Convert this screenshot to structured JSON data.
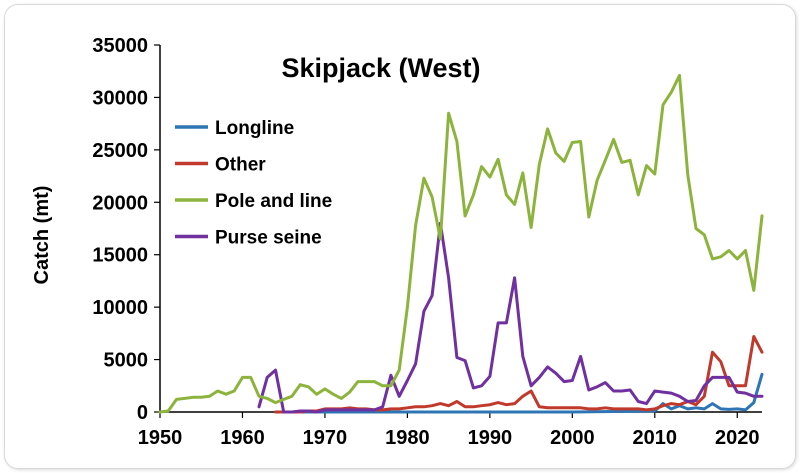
{
  "chart_data": {
    "type": "line",
    "title": "Skipjack (West)",
    "xlabel": "",
    "ylabel": "Catch (mt)",
    "xlim": [
      1950,
      2023
    ],
    "ylim": [
      0,
      35000
    ],
    "x_ticks": [
      1950,
      1960,
      1970,
      1980,
      1990,
      2000,
      2010,
      2020
    ],
    "y_ticks": [
      0,
      5000,
      10000,
      15000,
      20000,
      25000,
      30000,
      35000
    ],
    "grid": false,
    "legend_position": "left",
    "series": [
      {
        "name": "Longline",
        "color": "#2e75b6",
        "x": [
          1964,
          1970,
          1980,
          1990,
          2000,
          2005,
          2010,
          2011,
          2012,
          2013,
          2014,
          2015,
          2016,
          2017,
          2018,
          2019,
          2020,
          2021,
          2022,
          2023
        ],
        "values": [
          0,
          0,
          0,
          0,
          0,
          50,
          100,
          800,
          300,
          600,
          300,
          400,
          300,
          800,
          300,
          250,
          300,
          200,
          900,
          3600
        ]
      },
      {
        "name": "Other",
        "color": "#c0392b",
        "x": [
          1964,
          1965,
          1966,
          1967,
          1968,
          1969,
          1970,
          1971,
          1972,
          1973,
          1974,
          1975,
          1976,
          1977,
          1978,
          1979,
          1980,
          1981,
          1982,
          1983,
          1984,
          1985,
          1986,
          1987,
          1988,
          1989,
          1990,
          1991,
          1992,
          1993,
          1994,
          1995,
          1996,
          1997,
          1998,
          1999,
          2000,
          2001,
          2002,
          2003,
          2004,
          2005,
          2006,
          2007,
          2008,
          2009,
          2010,
          2011,
          2012,
          2013,
          2014,
          2015,
          2016,
          2017,
          2018,
          2019,
          2020,
          2021,
          2022,
          2023
        ],
        "values": [
          0,
          0,
          0,
          0,
          100,
          100,
          300,
          300,
          300,
          400,
          300,
          300,
          200,
          200,
          300,
          300,
          400,
          500,
          500,
          600,
          800,
          600,
          1000,
          500,
          500,
          600,
          700,
          900,
          700,
          800,
          1500,
          2000,
          500,
          400,
          400,
          400,
          400,
          400,
          300,
          300,
          400,
          300,
          300,
          300,
          300,
          200,
          300,
          600,
          800,
          700,
          1000,
          700,
          1500,
          5700,
          4800,
          2500,
          2500,
          2500,
          7200,
          5700
        ]
      },
      {
        "name": "Pole and line",
        "color": "#8cb43c",
        "x": [
          1950,
          1951,
          1952,
          1953,
          1954,
          1955,
          1956,
          1957,
          1958,
          1959,
          1960,
          1961,
          1962,
          1963,
          1964,
          1965,
          1966,
          1967,
          1968,
          1969,
          1970,
          1971,
          1972,
          1973,
          1974,
          1975,
          1976,
          1977,
          1978,
          1979,
          1980,
          1981,
          1982,
          1983,
          1984,
          1985,
          1986,
          1987,
          1988,
          1989,
          1990,
          1991,
          1992,
          1993,
          1994,
          1995,
          1996,
          1997,
          1998,
          1999,
          2000,
          2001,
          2002,
          2003,
          2004,
          2005,
          2006,
          2007,
          2008,
          2009,
          2010,
          2011,
          2012,
          2013,
          2014,
          2015,
          2016,
          2017,
          2018,
          2019,
          2020,
          2021,
          2022,
          2023
        ],
        "values": [
          0,
          100,
          1200,
          1300,
          1400,
          1400,
          1500,
          2000,
          1700,
          2000,
          3300,
          3300,
          1500,
          1300,
          900,
          1200,
          1500,
          2600,
          2400,
          1700,
          2200,
          1700,
          1300,
          1900,
          2900,
          2900,
          2900,
          2500,
          2500,
          4000,
          10000,
          17800,
          22300,
          20500,
          16500,
          28500,
          25800,
          18700,
          20700,
          23400,
          22400,
          24100,
          20700,
          19800,
          22800,
          17600,
          23600,
          27000,
          24700,
          23900,
          25700,
          25800,
          18600,
          22100,
          24000,
          26000,
          23800,
          24000,
          20700,
          23500,
          22700,
          29300,
          30500,
          32100,
          22600,
          17500,
          16900,
          14600,
          14800,
          15400,
          14600,
          15400,
          11600,
          18700
        ]
      },
      {
        "name": "Purse seine",
        "color": "#7030a0",
        "x": [
          1962,
          1963,
          1964,
          1965,
          1966,
          1967,
          1968,
          1969,
          1970,
          1971,
          1972,
          1973,
          1974,
          1975,
          1976,
          1977,
          1978,
          1979,
          1980,
          1981,
          1982,
          1983,
          1984,
          1985,
          1986,
          1987,
          1988,
          1989,
          1990,
          1991,
          1992,
          1993,
          1994,
          1995,
          1996,
          1997,
          1998,
          1999,
          2000,
          2001,
          2002,
          2003,
          2004,
          2005,
          2006,
          2007,
          2008,
          2009,
          2010,
          2011,
          2012,
          2013,
          2014,
          2015,
          2016,
          2017,
          2018,
          2019,
          2020,
          2021,
          2022,
          2023
        ],
        "values": [
          500,
          3300,
          4000,
          0,
          0,
          100,
          100,
          0,
          200,
          200,
          200,
          200,
          200,
          200,
          200,
          500,
          3500,
          1500,
          3000,
          4600,
          9600,
          11100,
          18000,
          12800,
          5200,
          4900,
          2300,
          2500,
          3400,
          8500,
          8500,
          12800,
          5300,
          2500,
          3300,
          4300,
          3700,
          2900,
          3000,
          5300,
          2100,
          2400,
          2800,
          2000,
          2000,
          2100,
          1000,
          800,
          2000,
          1900,
          1800,
          1500,
          1000,
          1100,
          2500,
          3300,
          3300,
          3300,
          1900,
          1800,
          1500,
          1500
        ]
      }
    ]
  }
}
